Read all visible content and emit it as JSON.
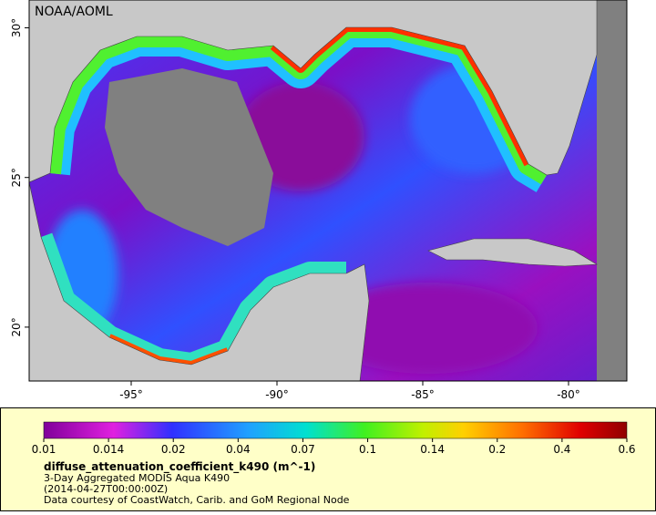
{
  "map": {
    "credit": "NOAA/AOML",
    "lonlim": [
      -98.5,
      -78
    ],
    "latlim": [
      18.2,
      30.93
    ],
    "lon_ticks": [
      {
        "value": -95,
        "label": "-95°"
      },
      {
        "value": -90,
        "label": "-90°"
      },
      {
        "value": -85,
        "label": "-85°"
      },
      {
        "value": -80,
        "label": "-80°"
      }
    ],
    "lat_ticks": [
      {
        "value": 20,
        "label": "20°"
      },
      {
        "value": 25,
        "label": "25°"
      },
      {
        "value": 30,
        "label": "30°"
      }
    ]
  },
  "colorbar": {
    "ticks": [
      0.01,
      0.014,
      0.02,
      0.04,
      0.07,
      0.1,
      0.14,
      0.2,
      0.4,
      0.6
    ]
  },
  "caption": {
    "title": "diffuse_attenuation_coefficient_k490 (m^-1)",
    "lines": [
      "3-Day Aggregated MODIS Aqua K490",
      "(2014-04-27T00:00:00Z)",
      "Data courtesy of CoastWatch, Carib. and GoM Regional Node"
    ]
  }
}
